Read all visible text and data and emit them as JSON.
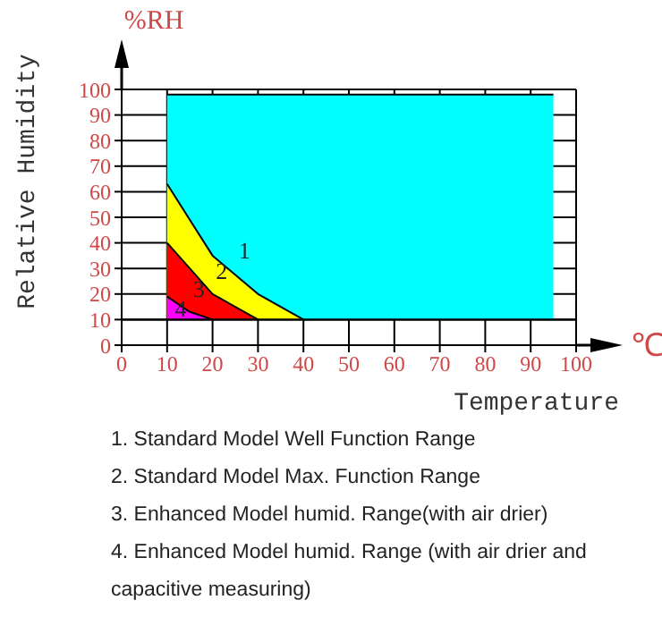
{
  "chart_data": {
    "type": "area",
    "xlabel": "Temperature",
    "ylabel": "Relative Humidity",
    "xlim": [
      0,
      100
    ],
    "xticks": [
      0,
      10,
      20,
      30,
      40,
      50,
      60,
      70,
      80,
      90,
      100
    ],
    "ylim": [
      0,
      100
    ],
    "yticks": [
      0,
      10,
      20,
      30,
      40,
      50,
      60,
      70,
      80,
      90,
      100
    ],
    "grid": true,
    "legend": false,
    "ref_lines": [
      {
        "axis": "y",
        "value": 10
      }
    ],
    "series": [
      {
        "name": "1",
        "color": "#00ffff",
        "x": [
          10,
          95
        ],
        "values": [
          98,
          98
        ]
      },
      {
        "name": "2",
        "color": "#ffff00",
        "x": [
          10,
          20,
          30,
          40
        ],
        "values": [
          63,
          35,
          20,
          10
        ]
      },
      {
        "name": "3",
        "color": "#ff0000",
        "x": [
          10,
          20,
          30
        ],
        "values": [
          40,
          20,
          10
        ]
      },
      {
        "name": "4",
        "color": "#ff00ff",
        "x": [
          10,
          15,
          20
        ],
        "values": [
          19,
          13,
          10
        ]
      }
    ],
    "annotations": [
      "%RH",
      "℃",
      "1. Standard Model Well Function Range",
      "2. Standard Model Max. Function Range",
      "3. Enhanced Model humid. Range(with air drier)",
      "4. Enhanced Model humid. Range (with air drier and capacitive measuring)"
    ]
  }
}
